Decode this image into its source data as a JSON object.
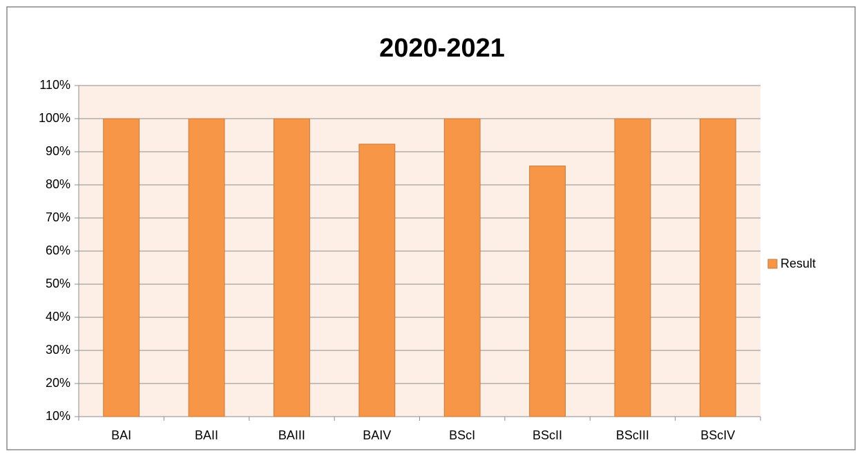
{
  "chart_data": {
    "type": "bar",
    "title": "2020-2021",
    "categories": [
      "BAI",
      "BAII",
      "BAIII",
      "BAIV",
      "BScI",
      "BScII",
      "BScIII",
      "BScIV"
    ],
    "series": [
      {
        "name": "Result",
        "color": "#f79646",
        "values": [
          100,
          100,
          100,
          92.3,
          100,
          85.7,
          100,
          100
        ]
      }
    ],
    "ylim": [
      10,
      110
    ],
    "yticks": [
      {
        "value": 10,
        "label": "10%"
      },
      {
        "value": 20,
        "label": "20%"
      },
      {
        "value": 30,
        "label": "30%"
      },
      {
        "value": 40,
        "label": "40%"
      },
      {
        "value": 50,
        "label": "50%"
      },
      {
        "value": 60,
        "label": "60%"
      },
      {
        "value": 70,
        "label": "70%"
      },
      {
        "value": 80,
        "label": "80%"
      },
      {
        "value": 90,
        "label": "90%"
      },
      {
        "value": 100,
        "label": "100%"
      },
      {
        "value": 110,
        "label": "110%"
      }
    ],
    "grid": true,
    "legend": "right"
  }
}
